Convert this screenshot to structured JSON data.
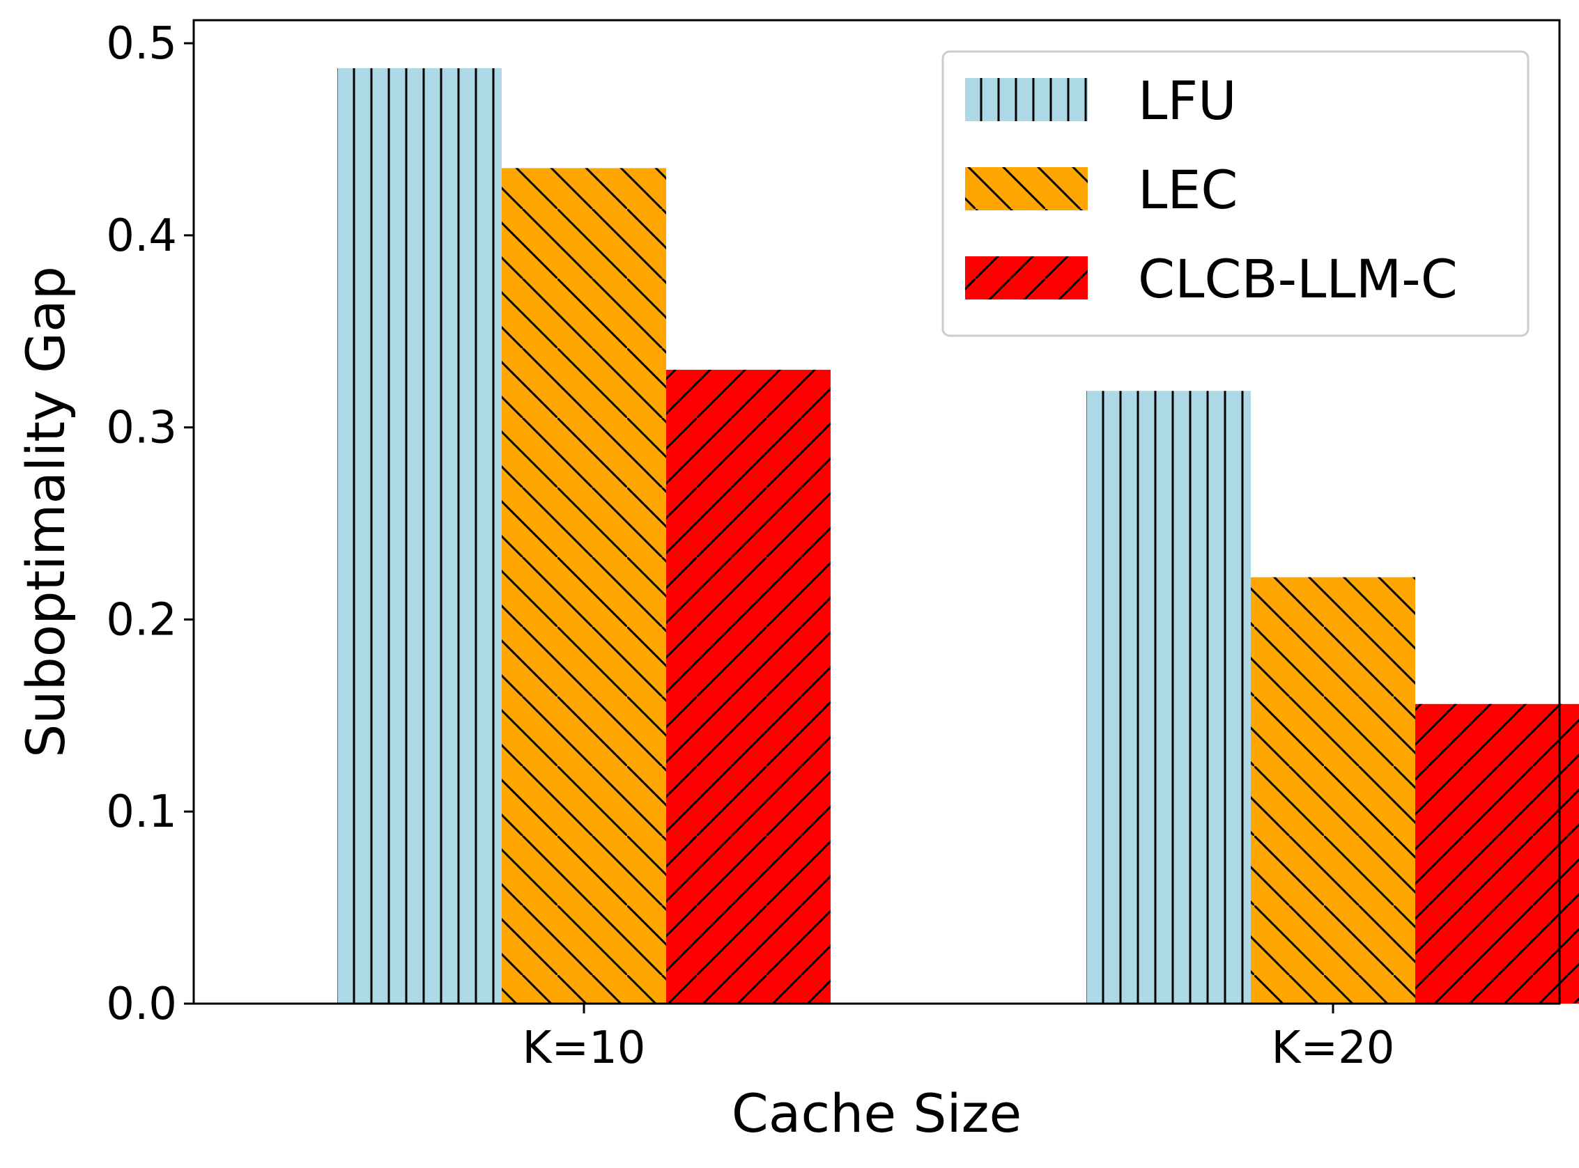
{
  "chart_data": {
    "type": "bar",
    "xlabel": "Cache Size",
    "ylabel": "Suboptimality Gap",
    "categories": [
      "K=10",
      "K=20"
    ],
    "ylim": [
      0,
      0.512
    ],
    "yticks": [
      "0.0",
      "0.1",
      "0.2",
      "0.3",
      "0.4",
      "0.5"
    ],
    "grid": false,
    "legend_position": "top-right",
    "series": [
      {
        "name": "LFU",
        "values": [
          0.487,
          0.319
        ],
        "color": "#add8e6",
        "hatch": "vertical"
      },
      {
        "name": "LEC",
        "values": [
          0.435,
          0.222
        ],
        "color": "#ffa500",
        "hatch": "backslash"
      },
      {
        "name": "CLCB-LLM-C",
        "values": [
          0.33,
          0.156
        ],
        "color": "#ff0000",
        "hatch": "slash"
      }
    ]
  }
}
